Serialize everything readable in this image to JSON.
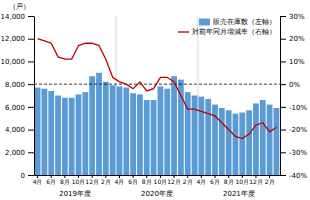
{
  "chart_data": {
    "type": "bar",
    "categories": [
      "4月",
      null,
      "6月",
      null,
      "8月",
      null,
      "10月",
      null,
      "12月",
      null,
      "2月",
      null,
      "4月",
      null,
      "6月",
      null,
      "8月",
      null,
      "10月",
      null,
      "12月",
      null,
      "2月",
      null,
      "4月",
      null,
      "6月",
      null,
      "8月",
      null,
      "10月",
      null,
      "12月",
      null,
      "2月",
      null
    ],
    "series": [
      {
        "name": "販売在庫数（左軸）",
        "type": "bar",
        "color": "#5b9bd5",
        "values": [
          7700,
          7600,
          7400,
          7000,
          6800,
          6800,
          7100,
          7300,
          8700,
          9000,
          8200,
          7900,
          7800,
          7700,
          7200,
          7100,
          6600,
          6600,
          7800,
          7600,
          8700,
          8400,
          7300,
          7000,
          6900,
          6700,
          6200,
          5900,
          5700,
          5400,
          5500,
          5700,
          6300,
          6600,
          6200,
          5900
        ]
      },
      {
        "name": "対前年同月増減率（右軸）",
        "type": "line",
        "color": "#c00000",
        "axis": "y2",
        "values": [
          20,
          19,
          18,
          12,
          11,
          11,
          17,
          18,
          18,
          17,
          11,
          3,
          1,
          0,
          -2,
          1,
          -3,
          -2,
          3,
          3,
          1,
          -5,
          -11,
          -11,
          -12,
          -13,
          -14,
          -17,
          -20,
          -23,
          -24,
          -22,
          -18,
          -17,
          -21,
          -19
        ]
      }
    ],
    "y_label": "（戸）",
    "annotations": [
      "2019年度",
      "2020年度",
      "2021年度"
    ],
    "hline": 8000,
    "ylim": [
      0,
      14000
    ],
    "yticks": [
      0,
      {
        "value": 2000,
        "label": "2,000"
      },
      {
        "value": 4000,
        "label": "4,000"
      },
      {
        "value": 6000,
        "label": "6,000"
      },
      {
        "value": 8000,
        "label": "8,000"
      },
      {
        "value": 10000,
        "label": "10,000"
      },
      {
        "value": 12000,
        "label": "12,000"
      },
      {
        "value": 14000,
        "label": "14,000"
      }
    ],
    "y2lim": [
      -40,
      30
    ],
    "y2ticks": [
      {
        "value": -40,
        "label": "-40%"
      },
      {
        "value": -30,
        "label": "-30%"
      },
      {
        "value": -20,
        "label": "-20%"
      },
      {
        "value": -10,
        "label": "-10%"
      },
      {
        "value": 0,
        "label": "0%"
      },
      {
        "value": 10,
        "label": "10%"
      },
      {
        "value": 20,
        "label": "20%"
      },
      {
        "value": 30,
        "label": "30%"
      }
    ],
    "grid": false,
    "legend": "upper right"
  }
}
